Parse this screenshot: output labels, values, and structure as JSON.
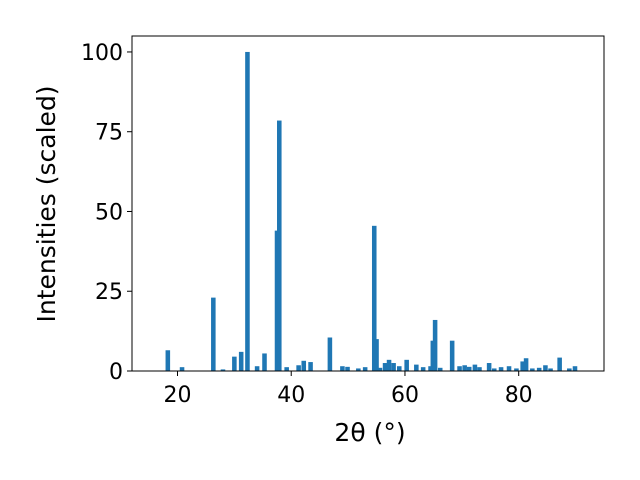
{
  "chart_data": {
    "type": "bar",
    "title": "",
    "xlabel": "2θ (°)",
    "ylabel": "Intensities (scaled)",
    "xlim": [
      12,
      95
    ],
    "ylim": [
      0,
      105
    ],
    "xticks": [
      "20",
      "40",
      "60",
      "80"
    ],
    "yticks": [
      "0",
      "25",
      "50",
      "75",
      "100"
    ],
    "grid": false,
    "legend": "none",
    "colors": {
      "bar": "#1f77b4",
      "axis": "#000000",
      "background": "#ffffff"
    },
    "series": [
      {
        "x": [
          18.3,
          20.8,
          26.3,
          28.0,
          30.0,
          31.2,
          32.3,
          34.0,
          35.3,
          37.5,
          37.9,
          39.2,
          41.3,
          42.2,
          43.4,
          46.8,
          49.0,
          49.9,
          51.8,
          53.0,
          54.6,
          55.0,
          55.6,
          56.5,
          57.2,
          58.0,
          59.0,
          60.3,
          62.0,
          63.2,
          64.5,
          64.9,
          65.3,
          66.2,
          68.3,
          69.6,
          70.5,
          71.3,
          72.3,
          73.1,
          74.8,
          75.7,
          76.9,
          78.3,
          79.6,
          80.7,
          81.3,
          82.4,
          83.6,
          84.7,
          85.6,
          87.2,
          88.9,
          89.9
        ],
        "y": [
          6.5,
          1.2,
          23.0,
          0.5,
          4.5,
          6.0,
          100.0,
          1.5,
          5.5,
          44.0,
          78.5,
          1.2,
          1.8,
          3.2,
          2.8,
          10.5,
          1.5,
          1.3,
          0.8,
          1.2,
          45.5,
          10.0,
          1.0,
          2.5,
          3.5,
          2.5,
          1.5,
          3.5,
          2.0,
          1.2,
          1.5,
          9.5,
          16.0,
          1.0,
          9.5,
          1.5,
          1.8,
          1.3,
          2.0,
          1.2,
          2.5,
          0.8,
          1.2,
          1.5,
          0.8,
          3.0,
          4.0,
          0.8,
          1.0,
          1.8,
          0.8,
          4.2,
          0.8,
          1.5
        ]
      }
    ]
  }
}
